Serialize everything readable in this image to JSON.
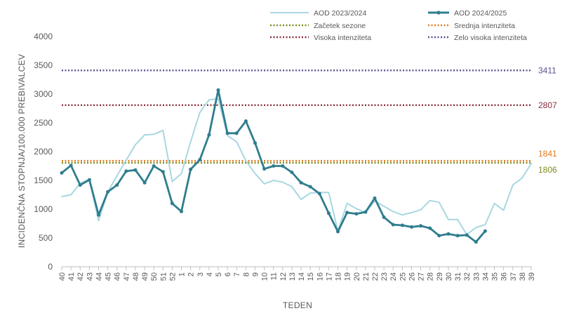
{
  "chart_data": {
    "type": "line",
    "xlabel": "TEDEN",
    "ylabel": "INCIDENČNA  STOPNJA/100.000  PREBIVALCEV",
    "ylim": [
      0,
      4000
    ],
    "yticks": [
      0,
      500,
      1000,
      1500,
      2000,
      2500,
      3000,
      3500,
      4000
    ],
    "categories": [
      "40",
      "41",
      "42",
      "43",
      "44",
      "45",
      "46",
      "47",
      "48",
      "49",
      "50",
      "51",
      "52",
      "1",
      "2",
      "3",
      "4",
      "5",
      "6",
      "7",
      "8",
      "9",
      "10",
      "11",
      "12",
      "13",
      "14",
      "15",
      "16",
      "17",
      "18",
      "19",
      "20",
      "21",
      "22",
      "23",
      "24",
      "25",
      "26",
      "27",
      "28",
      "29",
      "30",
      "31",
      "32",
      "33",
      "34",
      "35",
      "36",
      "37",
      "38",
      "39"
    ],
    "series": [
      {
        "name": "AOD 2023/2024",
        "color": "#a8d8e0",
        "values": [
          1220,
          1250,
          1450,
          1520,
          800,
          1300,
          1580,
          1850,
          2120,
          2290,
          2300,
          2370,
          1480,
          1620,
          2170,
          2680,
          2900,
          2920,
          2280,
          2170,
          1840,
          1620,
          1440,
          1500,
          1470,
          1390,
          1170,
          1280,
          1290,
          1290,
          620,
          1100,
          1010,
          940,
          1140,
          1050,
          960,
          900,
          940,
          990,
          1150,
          1120,
          820,
          820,
          560,
          680,
          730,
          1100,
          980,
          1420,
          1540,
          1790
        ]
      },
      {
        "name": "AOD 2024/2025",
        "color": "#2f7d8e",
        "values": [
          1630,
          1760,
          1420,
          1510,
          900,
          1300,
          1420,
          1660,
          1680,
          1460,
          1750,
          1650,
          1100,
          960,
          1690,
          1860,
          2290,
          3070,
          2320,
          2320,
          2530,
          2150,
          1700,
          1750,
          1750,
          1640,
          1460,
          1390,
          1270,
          930,
          610,
          940,
          920,
          950,
          1190,
          860,
          730,
          720,
          690,
          710,
          670,
          540,
          570,
          540,
          550,
          430,
          620,
          null,
          null,
          null,
          null,
          null
        ]
      }
    ],
    "reference_lines": [
      {
        "name": "Začetek sezone",
        "value": 1806,
        "label": "1806",
        "color": "#7f8a1e"
      },
      {
        "name": "Srednja intenziteta",
        "value": 1841,
        "label": "1841",
        "color": "#e37a1c"
      },
      {
        "name": "Visoka intenziteta",
        "value": 2807,
        "label": "2807",
        "color": "#8b2e3d"
      },
      {
        "name": "Zelo visoka intenziteta",
        "value": 3411,
        "label": "3411",
        "color": "#5a4f91"
      }
    ],
    "legend_position": "top-right",
    "grid": false
  }
}
